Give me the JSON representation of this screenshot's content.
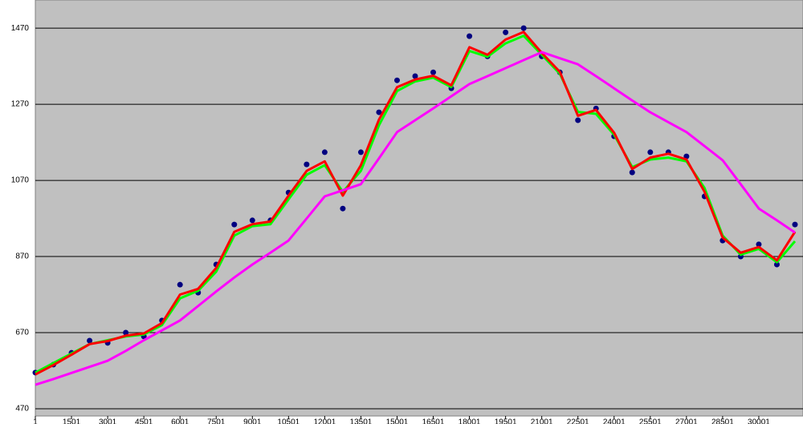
{
  "chart_data": {
    "type": "line",
    "x": [
      1,
      751,
      1501,
      2251,
      3001,
      3751,
      4501,
      5251,
      6001,
      6751,
      7501,
      8251,
      9001,
      9751,
      10501,
      11251,
      12001,
      12751,
      13501,
      14251,
      15001,
      15751,
      16501,
      17251,
      18001,
      18751,
      19501,
      20251,
      21001,
      21751,
      22501,
      23251,
      24001,
      24751,
      25501,
      26251,
      27001,
      27751,
      28501,
      29251,
      30001,
      30751,
      31501
    ],
    "series": [
      {
        "color": "#000080",
        "marker": true,
        "values": [
          565,
          586,
          617,
          649,
          643,
          670,
          660,
          702,
          796,
          775,
          849,
          954,
          965,
          965,
          1038,
          1112,
          1144,
          996,
          1144,
          1249,
          1333,
          1344,
          1354,
          1312,
          1449,
          1396,
          1459,
          1470,
          1396,
          1354,
          1228,
          1259,
          1186,
          1091,
          1144,
          1144,
          1133,
          1028,
          912,
          870,
          902,
          849,
          954
        ]
      },
      {
        "color": "#00ff00",
        "values": [
          565,
          590,
          615,
          640,
          650,
          660,
          665,
          690,
          760,
          780,
          830,
          925,
          950,
          955,
          1020,
          1085,
          1110,
          1040,
          1095,
          1215,
          1305,
          1330,
          1340,
          1315,
          1410,
          1395,
          1430,
          1450,
          1400,
          1350,
          1250,
          1245,
          1190,
          1105,
          1125,
          1130,
          1120,
          1050,
          925,
          875,
          890,
          855,
          910
        ]
      },
      {
        "color": "#ff0000",
        "values": [
          560,
          585,
          612,
          640,
          648,
          662,
          668,
          695,
          770,
          785,
          840,
          935,
          955,
          962,
          1030,
          1095,
          1120,
          1030,
          1110,
          1230,
          1315,
          1335,
          1345,
          1320,
          1420,
          1400,
          1440,
          1460,
          1405,
          1355,
          1240,
          1255,
          1195,
          1100,
          1130,
          1140,
          1125,
          1040,
          920,
          880,
          895,
          860,
          935
        ]
      },
      {
        "color": "#ff00ff",
        "values": [
          533,
          548,
          564,
          580,
          596,
          622,
          650,
          676,
          702,
          740,
          778,
          815,
          849,
          880,
          912,
          970,
          1028,
          1044,
          1060,
          1128,
          1197,
          1228,
          1259,
          1291,
          1323,
          1344,
          1365,
          1386,
          1407,
          1391,
          1375,
          1344,
          1312,
          1280,
          1249,
          1223,
          1197,
          1160,
          1123,
          1060,
          996,
          965,
          933
        ]
      }
    ],
    "xlim": [
      1,
      31834
    ],
    "xticks": [
      1,
      1501,
      3001,
      4501,
      6001,
      7501,
      9001,
      10501,
      12001,
      13501,
      15001,
      16501,
      18001,
      19501,
      21001,
      22501,
      24001,
      25501,
      27001,
      28501,
      30001
    ],
    "ylim": [
      451,
      1544
    ],
    "yticks": [
      470,
      670,
      870,
      1070,
      1270,
      1470
    ],
    "grid": true,
    "background": "#c0c0c0"
  }
}
